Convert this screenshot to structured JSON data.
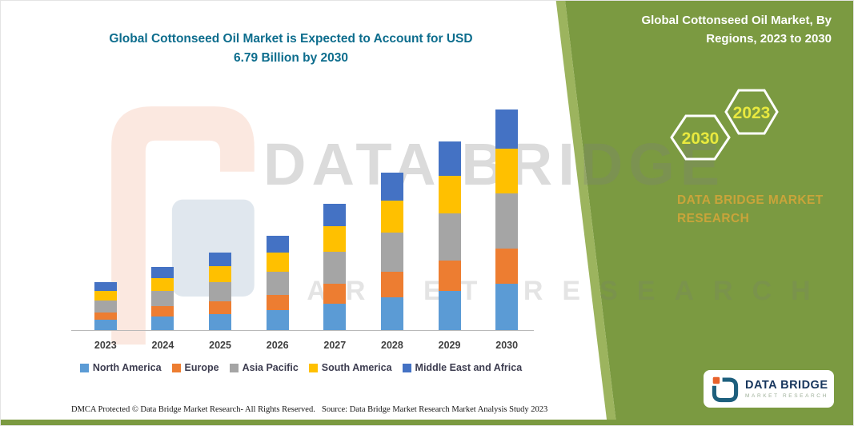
{
  "title": {
    "line1": "Global Cottonseed Oil Market is Expected to Account for USD",
    "line2": "6.79 Billion by 2030",
    "color": "#0d6d8d"
  },
  "right_panel": {
    "heading": "Global Cottonseed Oil Market, By Regions, 2023 to 2030",
    "hexagon_years": [
      "2030",
      "2023"
    ],
    "brand_text": "DATA BRIDGE MARKET RESEARCH",
    "bg_color": "#7b9a41",
    "year_color": "#e9e93f",
    "brand_color": "#c9a43a"
  },
  "watermark": {
    "line1": "DATA BRIDGE",
    "line2": "MARKET RESEARCH"
  },
  "logo_card": {
    "brand": "DATA BRIDGE",
    "subtitle": "MARKET RESEARCH"
  },
  "footer": {
    "dmca": "DMCA Protected © Data Bridge Market Research-  All Rights Reserved.",
    "source": "Source: Data Bridge Market Research  Market Analysis Study 2023"
  },
  "chart_data": {
    "type": "bar",
    "stacked": true,
    "title": "Global Cottonseed Oil Market is Expected to Account for USD 6.79 Billion by 2030",
    "unit": "USD Billion (estimated from bar heights; 2030 total labeled 6.79)",
    "categories": [
      "2023",
      "2024",
      "2025",
      "2026",
      "2027",
      "2028",
      "2029",
      "2030"
    ],
    "series": [
      {
        "name": "North America",
        "color": "#5B9BD5",
        "values": [
          0.31,
          0.41,
          0.5,
          0.61,
          0.82,
          1.02,
          1.22,
          1.43
        ]
      },
      {
        "name": "Europe",
        "color": "#ED7D31",
        "values": [
          0.24,
          0.32,
          0.38,
          0.47,
          0.62,
          0.78,
          0.93,
          1.09
        ]
      },
      {
        "name": "Asia Pacific",
        "color": "#A5A5A5",
        "values": [
          0.37,
          0.49,
          0.6,
          0.73,
          0.97,
          1.21,
          1.45,
          1.7
        ]
      },
      {
        "name": "South America",
        "color": "#FFC000",
        "values": [
          0.3,
          0.39,
          0.48,
          0.58,
          0.78,
          0.97,
          1.16,
          1.36
        ]
      },
      {
        "name": "Middle East and Africa",
        "color": "#4472C4",
        "values": [
          0.27,
          0.35,
          0.43,
          0.52,
          0.7,
          0.87,
          1.05,
          1.21
        ]
      }
    ],
    "totals": [
      1.49,
      1.96,
      2.39,
      2.91,
      3.89,
      4.85,
      5.81,
      6.79
    ],
    "ylim": [
      0,
      7
    ],
    "grid": false,
    "legend_position": "bottom",
    "xlabel": "",
    "ylabel": ""
  }
}
